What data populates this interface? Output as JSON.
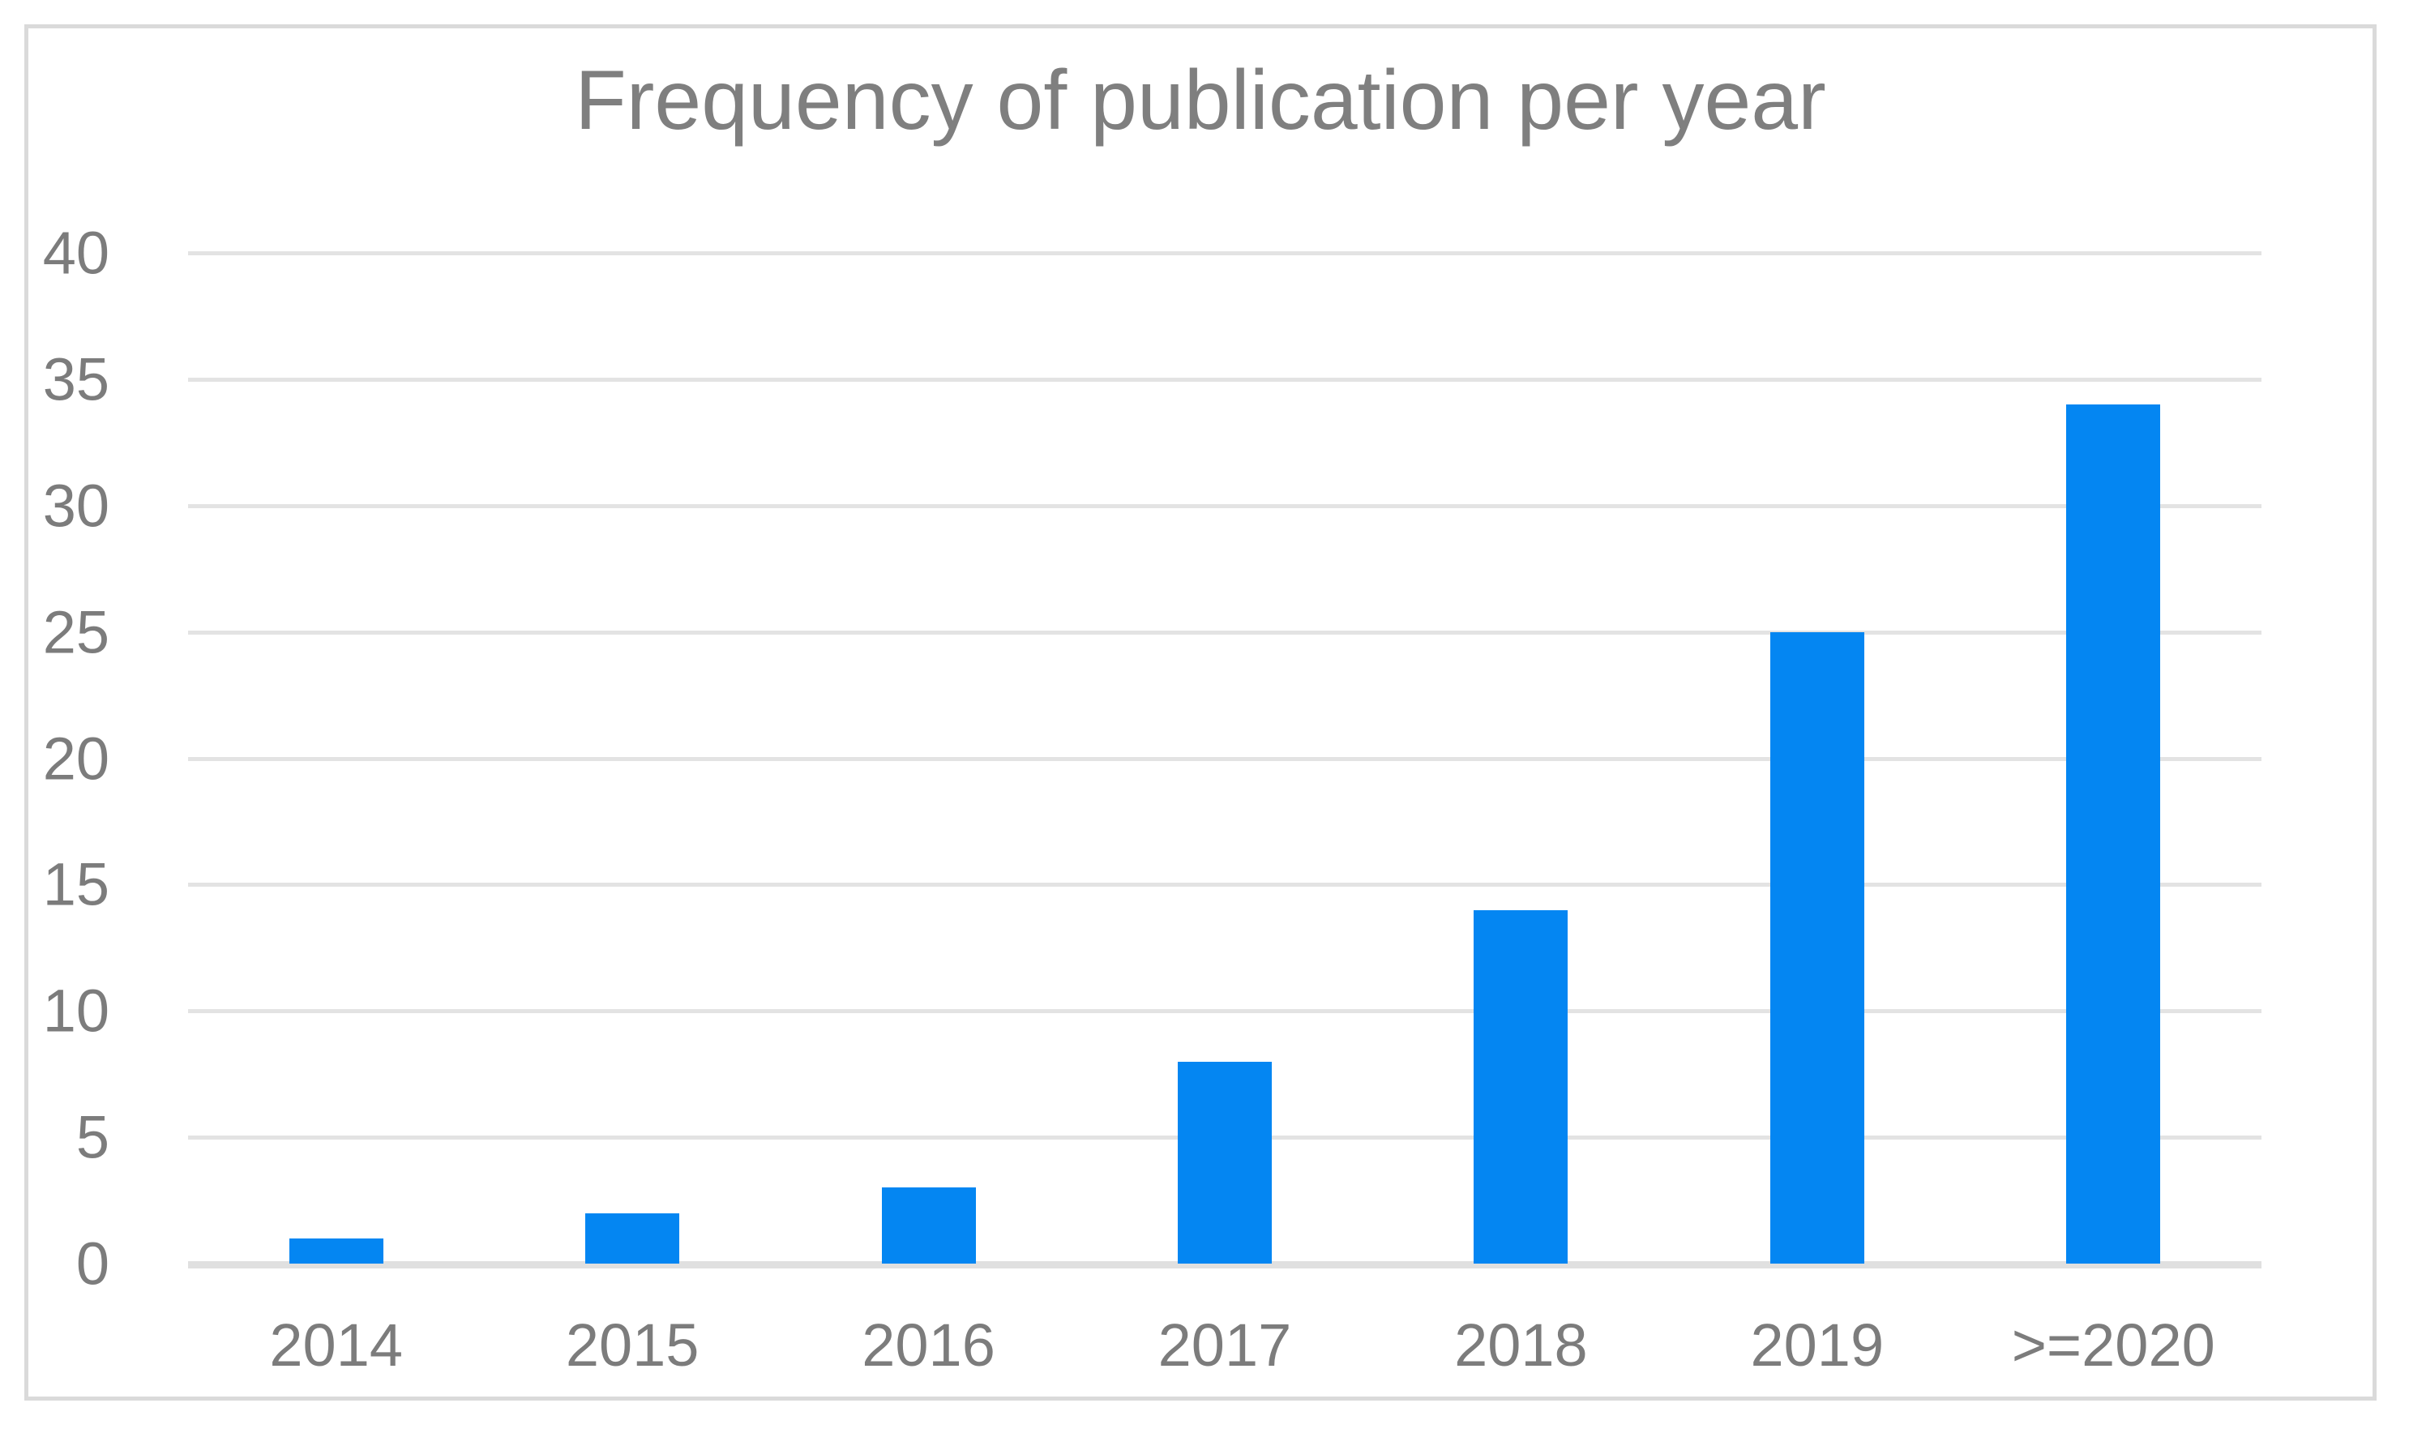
{
  "chart_data": {
    "type": "bar",
    "title": "Frequency of publication per year",
    "categories": [
      "2014",
      "2015",
      "2016",
      "2017",
      "2018",
      "2019",
      ">=2020"
    ],
    "values": [
      1,
      2,
      3,
      8,
      14,
      25,
      34
    ],
    "xlabel": "",
    "ylabel": "",
    "ylim": [
      0,
      40
    ],
    "yticks": [
      0,
      5,
      10,
      15,
      20,
      25,
      30,
      35,
      40
    ],
    "grid": true,
    "legend": false,
    "bar_color": "#0486f2",
    "gridline_color": "#e3e3e3",
    "axis_line_color": "#e0e0e0",
    "frame_border_color": "#dadada",
    "title_color": "#7f7f7f",
    "tick_label_color": "#7c7c7c"
  }
}
